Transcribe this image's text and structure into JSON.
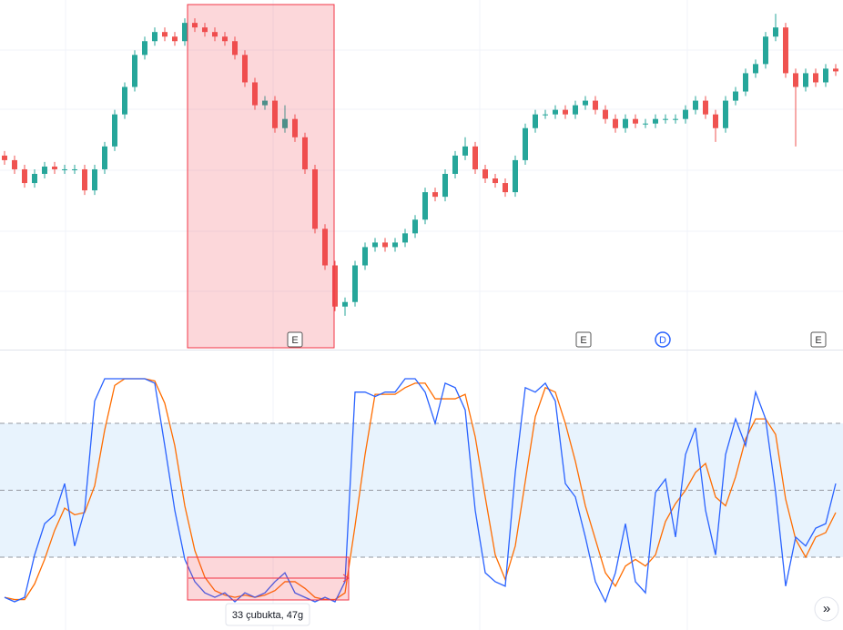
{
  "price_chart": {
    "type": "candlestick",
    "ylim": [
      0,
      380
    ],
    "up_color": "#26a69a",
    "down_color": "#ef5350",
    "candles": [
      [
        210,
        215,
        200,
        205
      ],
      [
        205,
        210,
        190,
        195
      ],
      [
        195,
        200,
        175,
        180
      ],
      [
        180,
        195,
        175,
        190
      ],
      [
        190,
        203,
        185,
        198
      ],
      [
        198,
        203,
        190,
        195
      ],
      [
        195,
        200,
        190,
        195
      ],
      [
        195,
        200,
        190,
        195
      ],
      [
        195,
        200,
        167,
        172
      ],
      [
        172,
        200,
        167,
        195
      ],
      [
        195,
        225,
        190,
        220
      ],
      [
        220,
        260,
        215,
        255
      ],
      [
        255,
        290,
        250,
        285
      ],
      [
        285,
        325,
        280,
        320
      ],
      [
        320,
        340,
        315,
        335
      ],
      [
        335,
        350,
        330,
        345
      ],
      [
        345,
        350,
        335,
        340
      ],
      [
        340,
        345,
        330,
        335
      ],
      [
        335,
        360,
        330,
        355
      ],
      [
        355,
        360,
        345,
        350
      ],
      [
        350,
        355,
        340,
        345
      ],
      [
        345,
        350,
        335,
        340
      ],
      [
        340,
        345,
        330,
        335
      ],
      [
        335,
        340,
        315,
        320
      ],
      [
        320,
        325,
        285,
        290
      ],
      [
        290,
        295,
        260,
        265
      ],
      [
        265,
        275,
        260,
        270
      ],
      [
        270,
        275,
        235,
        240
      ],
      [
        240,
        265,
        235,
        250
      ],
      [
        250,
        255,
        225,
        230
      ],
      [
        230,
        235,
        190,
        195
      ],
      [
        195,
        200,
        125,
        130
      ],
      [
        130,
        135,
        85,
        90
      ],
      [
        90,
        95,
        40,
        45
      ],
      [
        45,
        55,
        35,
        50
      ],
      [
        50,
        95,
        45,
        90
      ],
      [
        90,
        115,
        85,
        110
      ],
      [
        110,
        120,
        105,
        115
      ],
      [
        115,
        120,
        105,
        110
      ],
      [
        110,
        120,
        105,
        115
      ],
      [
        115,
        130,
        110,
        125
      ],
      [
        125,
        145,
        120,
        140
      ],
      [
        140,
        175,
        135,
        170
      ],
      [
        170,
        175,
        160,
        165
      ],
      [
        165,
        195,
        160,
        190
      ],
      [
        190,
        215,
        185,
        210
      ],
      [
        210,
        230,
        205,
        220
      ],
      [
        220,
        225,
        190,
        195
      ],
      [
        195,
        200,
        180,
        185
      ],
      [
        185,
        190,
        175,
        180
      ],
      [
        180,
        185,
        165,
        170
      ],
      [
        170,
        210,
        165,
        205
      ],
      [
        205,
        245,
        200,
        240
      ],
      [
        240,
        260,
        235,
        255
      ],
      [
        255,
        260,
        250,
        255
      ],
      [
        255,
        265,
        250,
        260
      ],
      [
        260,
        265,
        250,
        255
      ],
      [
        255,
        270,
        250,
        265
      ],
      [
        265,
        275,
        260,
        270
      ],
      [
        270,
        275,
        255,
        260
      ],
      [
        260,
        265,
        245,
        250
      ],
      [
        250,
        255,
        235,
        240
      ],
      [
        240,
        255,
        235,
        250
      ],
      [
        250,
        255,
        240,
        245
      ],
      [
        245,
        250,
        240,
        245
      ],
      [
        245,
        255,
        240,
        250
      ],
      [
        250,
        255,
        245,
        250
      ],
      [
        250,
        255,
        245,
        250
      ],
      [
        250,
        265,
        245,
        260
      ],
      [
        260,
        275,
        255,
        270
      ],
      [
        270,
        275,
        250,
        255
      ],
      [
        255,
        260,
        225,
        240
      ],
      [
        240,
        275,
        235,
        270
      ],
      [
        270,
        285,
        265,
        280
      ],
      [
        280,
        305,
        275,
        300
      ],
      [
        300,
        315,
        295,
        310
      ],
      [
        310,
        345,
        305,
        340
      ],
      [
        340,
        365,
        335,
        350
      ],
      [
        350,
        355,
        295,
        300
      ],
      [
        300,
        305,
        220,
        285
      ],
      [
        285,
        305,
        280,
        300
      ],
      [
        300,
        305,
        285,
        290
      ],
      [
        290,
        310,
        285,
        305
      ],
      [
        305,
        310,
        297,
        302
      ]
    ]
  },
  "markers": [
    "E",
    "E",
    "D",
    "E"
  ],
  "oscillator": {
    "type": "line",
    "ylim": [
      0,
      100
    ],
    "bands": [
      20,
      50,
      80
    ],
    "series": [
      {
        "color": "#2962ff",
        "values": [
          2,
          0,
          2,
          21,
          35,
          39,
          53,
          25,
          41,
          90,
          100,
          100,
          100,
          100,
          100,
          98,
          70,
          41,
          19,
          9,
          4,
          2,
          4,
          0,
          4,
          2,
          4,
          9,
          13,
          4,
          2,
          0,
          2,
          0,
          9,
          94,
          94,
          92,
          94,
          94,
          100,
          100,
          94,
          80,
          98,
          96,
          86,
          41,
          13,
          9,
          7,
          58,
          96,
          94,
          98,
          90,
          53,
          47,
          29,
          9,
          0,
          13,
          35,
          9,
          4,
          49,
          55,
          29,
          66,
          78,
          41,
          21,
          66,
          82,
          70,
          94,
          82,
          49,
          7,
          29,
          25,
          33,
          35,
          53
        ]
      },
      {
        "color": "#ff6d00",
        "values": [
          2,
          1,
          1,
          8,
          19,
          32,
          42,
          39,
          40,
          52,
          77,
          97,
          100,
          100,
          100,
          99,
          89,
          70,
          43,
          23,
          11,
          5,
          3,
          2,
          3,
          2,
          3,
          5,
          9,
          9,
          6,
          2,
          1,
          1,
          4,
          34,
          66,
          93,
          93,
          93,
          96,
          98,
          98,
          91,
          91,
          91,
          93,
          74,
          47,
          21,
          10,
          25,
          54,
          83,
          96,
          94,
          80,
          63,
          43,
          28,
          13,
          7,
          16,
          19,
          16,
          21,
          36,
          44,
          50,
          58,
          62,
          47,
          43,
          56,
          73,
          82,
          82,
          75,
          46,
          28,
          20,
          29,
          31,
          40
        ]
      }
    ]
  },
  "measure_label": "33 çubukta, 47g",
  "scroll_button": "»"
}
